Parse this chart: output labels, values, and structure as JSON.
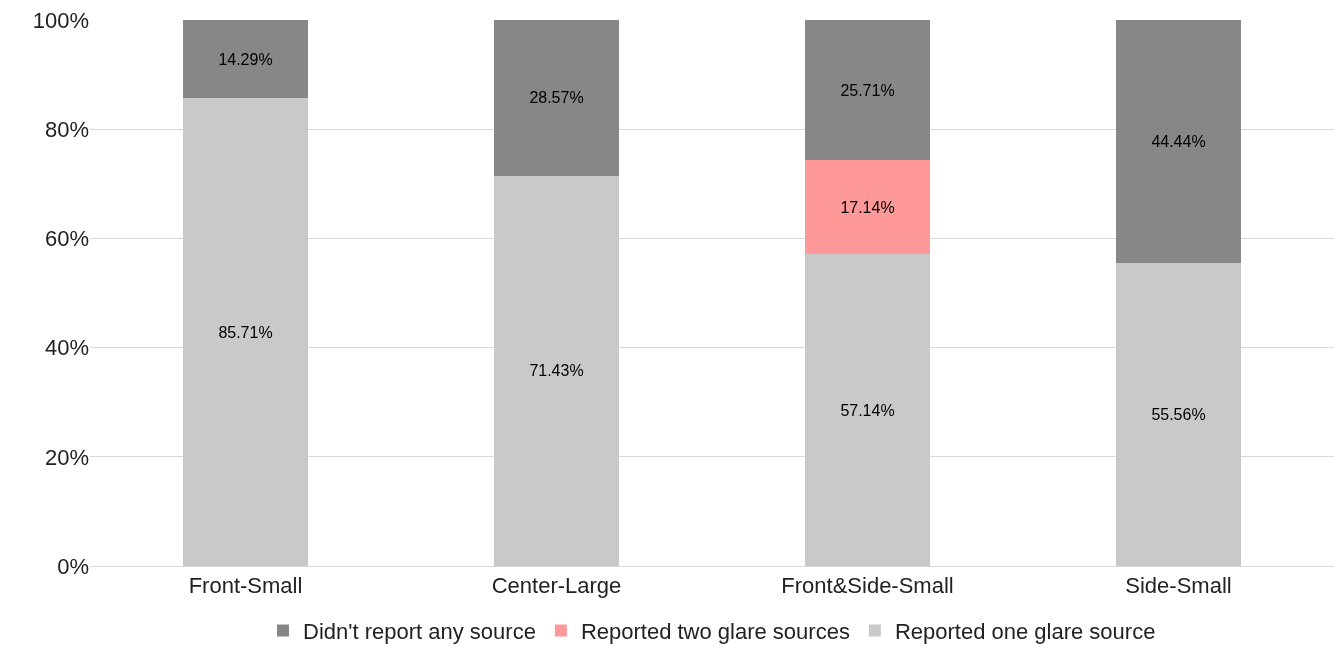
{
  "chart_data": {
    "type": "bar",
    "stacked": true,
    "categories": [
      "Front-Small",
      "Center-Large",
      "Front&Side-Small",
      "Side-Small"
    ],
    "series": [
      {
        "name": "Reported one glare source",
        "color": "#c9c9c9",
        "values": [
          85.71,
          71.43,
          57.14,
          55.56
        ],
        "value_labels": [
          "85.71%",
          "71.43%",
          "57.14%",
          "55.56%"
        ]
      },
      {
        "name": "Reported two glare sources",
        "color": "#ff9999",
        "values": [
          0,
          0,
          17.14,
          0
        ],
        "value_labels": [
          null,
          null,
          "17.14%",
          null
        ]
      },
      {
        "name": "Didn't report any source",
        "color": "#878787",
        "values": [
          14.29,
          28.57,
          25.71,
          44.44
        ],
        "value_labels": [
          "14.29%",
          "28.57%",
          "25.71%",
          "44.44%"
        ]
      }
    ],
    "ylim": [
      0,
      100
    ],
    "yticks": [
      {
        "value": 0,
        "label": "0%"
      },
      {
        "value": 20,
        "label": "20%"
      },
      {
        "value": 40,
        "label": "40%"
      },
      {
        "value": 60,
        "label": "60%"
      },
      {
        "value": 80,
        "label": "80%"
      },
      {
        "value": 100,
        "label": "100%"
      }
    ],
    "grid": "y",
    "legend": "bottom"
  }
}
